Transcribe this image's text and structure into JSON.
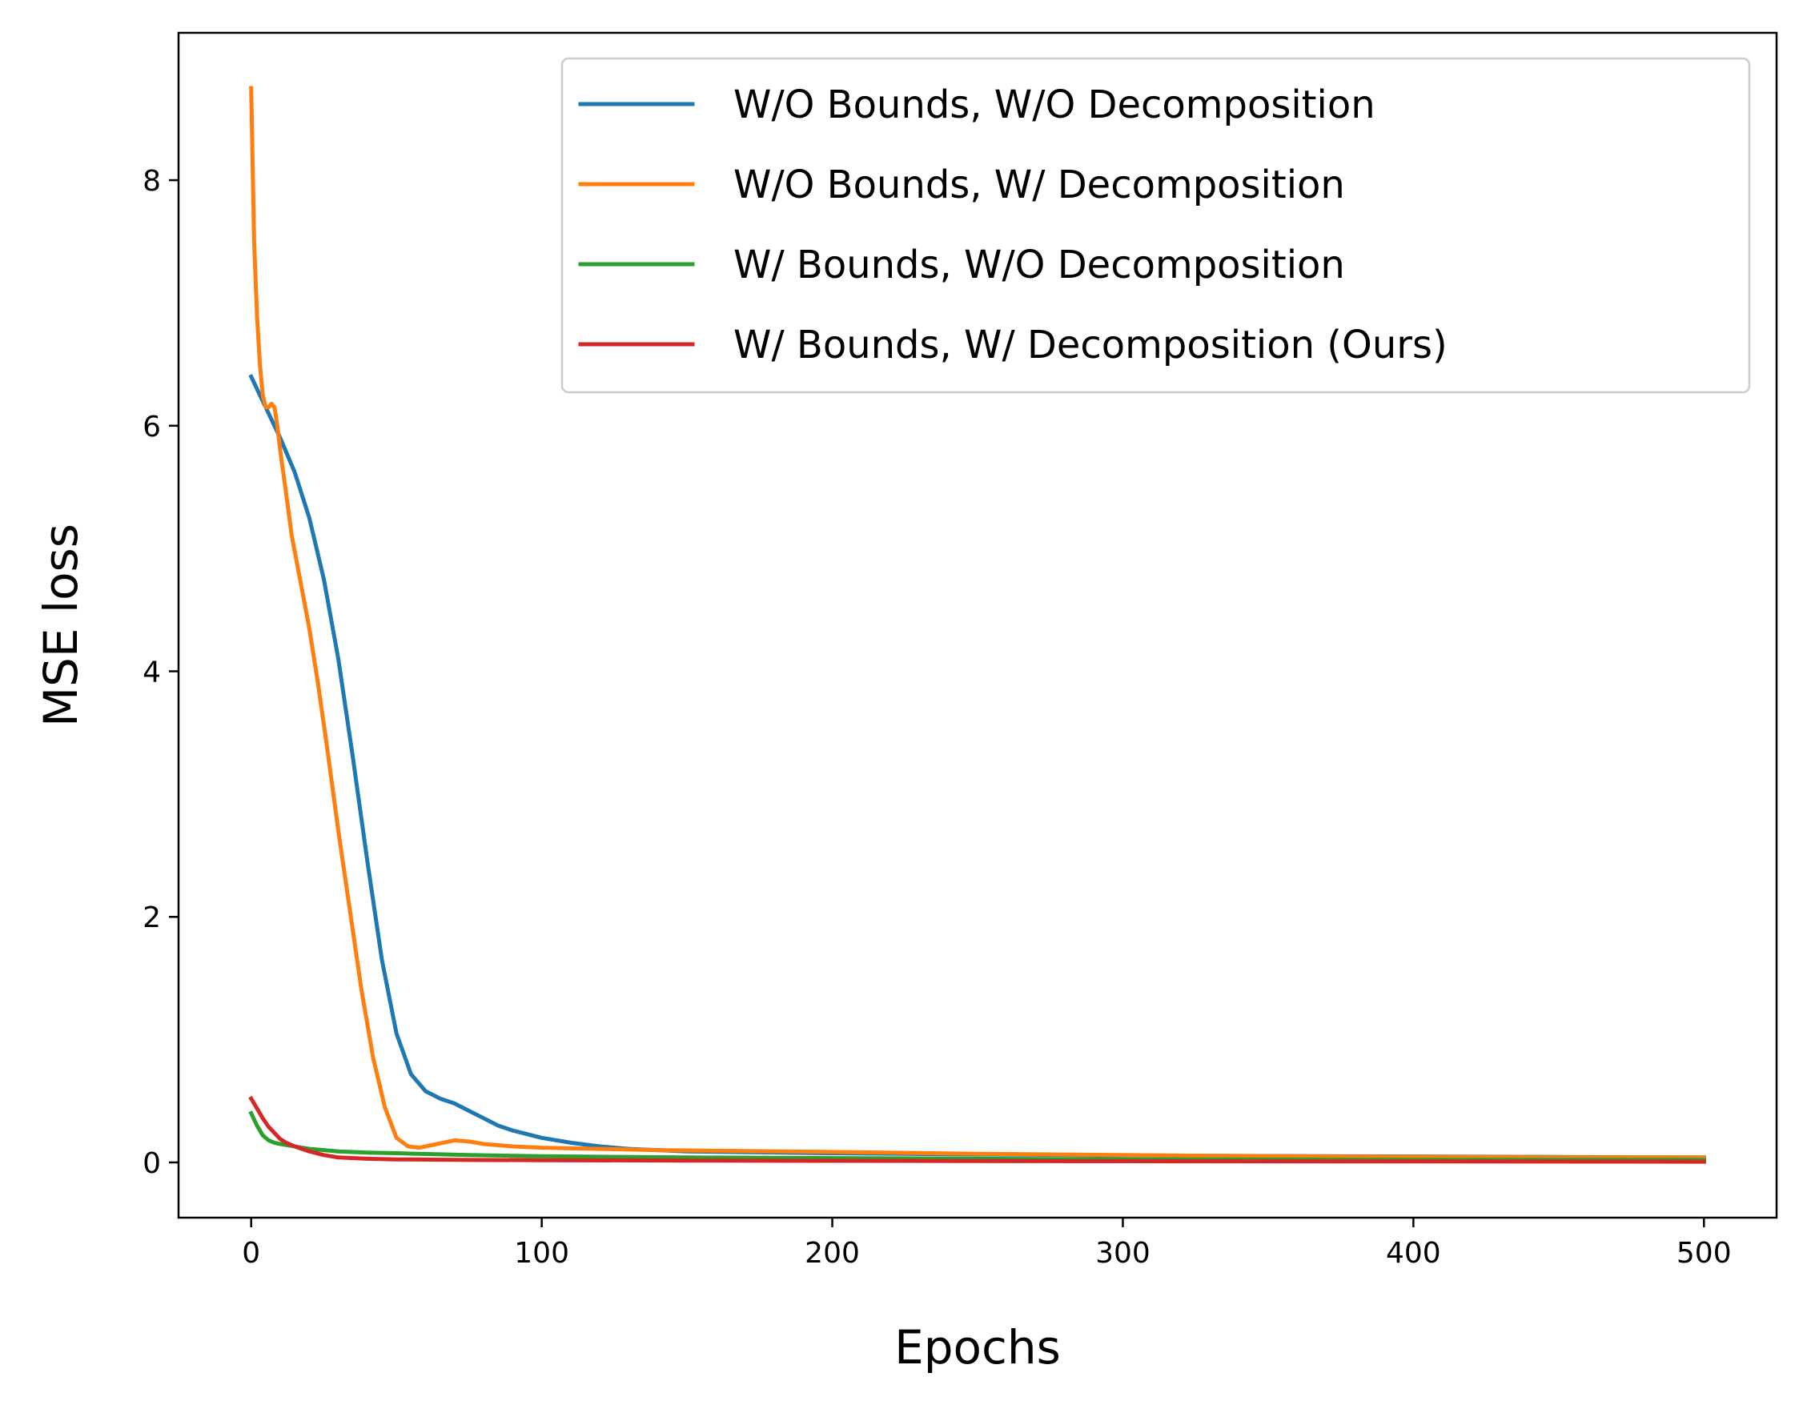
{
  "chart_data": {
    "type": "line",
    "title": "",
    "xlabel": "Epochs",
    "ylabel": "MSE loss",
    "xlim": [
      -25,
      525
    ],
    "ylim": [
      -0.45,
      9.2
    ],
    "xticks": [
      0,
      100,
      200,
      300,
      400,
      500
    ],
    "xtick_labels": [
      "0",
      "100",
      "200",
      "300",
      "400",
      "500"
    ],
    "yticks": [
      0,
      2,
      4,
      6,
      8
    ],
    "ytick_labels": [
      "0",
      "2",
      "4",
      "6",
      "8"
    ],
    "grid": false,
    "legend_position": "upper right",
    "series": [
      {
        "name": "W/O Bounds, W/O Decomposition",
        "color": "#1f77b4",
        "x": [
          0,
          5,
          10,
          15,
          20,
          25,
          30,
          35,
          40,
          45,
          50,
          55,
          60,
          65,
          70,
          75,
          80,
          85,
          90,
          95,
          100,
          110,
          120,
          130,
          140,
          150,
          200,
          250,
          300,
          350,
          400,
          450,
          500
        ],
        "y": [
          6.4,
          6.15,
          5.9,
          5.62,
          5.25,
          4.75,
          4.1,
          3.3,
          2.45,
          1.65,
          1.05,
          0.72,
          0.58,
          0.52,
          0.48,
          0.42,
          0.36,
          0.3,
          0.26,
          0.23,
          0.2,
          0.16,
          0.13,
          0.11,
          0.1,
          0.09,
          0.075,
          0.065,
          0.058,
          0.052,
          0.048,
          0.044,
          0.04
        ]
      },
      {
        "name": "W/O Bounds, W/ Decomposition",
        "color": "#ff7f0e",
        "x": [
          0,
          1,
          2,
          3,
          4,
          5,
          6,
          7,
          8,
          9,
          10,
          12,
          14,
          16,
          18,
          20,
          23,
          26,
          30,
          34,
          38,
          42,
          46,
          50,
          54,
          58,
          62,
          66,
          70,
          75,
          80,
          90,
          100,
          120,
          140,
          160,
          200,
          250,
          300,
          350,
          400,
          450,
          500
        ],
        "y": [
          8.75,
          7.5,
          6.9,
          6.5,
          6.25,
          6.15,
          6.15,
          6.18,
          6.15,
          6.0,
          5.8,
          5.45,
          5.1,
          4.85,
          4.6,
          4.35,
          3.9,
          3.4,
          2.7,
          2.05,
          1.4,
          0.85,
          0.45,
          0.2,
          0.13,
          0.12,
          0.14,
          0.16,
          0.18,
          0.17,
          0.15,
          0.13,
          0.12,
          0.11,
          0.1,
          0.095,
          0.085,
          0.07,
          0.06,
          0.05,
          0.045,
          0.04,
          0.04
        ]
      },
      {
        "name": "W/ Bounds, W/O Decomposition",
        "color": "#2ca02c",
        "x": [
          0,
          2,
          4,
          6,
          8,
          10,
          15,
          20,
          25,
          30,
          40,
          50,
          75,
          100,
          150,
          200,
          300,
          400,
          500
        ],
        "y": [
          0.4,
          0.3,
          0.22,
          0.18,
          0.16,
          0.15,
          0.13,
          0.11,
          0.1,
          0.09,
          0.08,
          0.075,
          0.06,
          0.05,
          0.04,
          0.035,
          0.025,
          0.02,
          0.02
        ]
      },
      {
        "name": "W/ Bounds, W/ Decomposition (Ours)",
        "color": "#d62728",
        "x": [
          0,
          2,
          4,
          6,
          8,
          10,
          12,
          15,
          20,
          25,
          30,
          35,
          40,
          50,
          75,
          100,
          150,
          200,
          300,
          400,
          500
        ],
        "y": [
          0.52,
          0.44,
          0.36,
          0.29,
          0.24,
          0.19,
          0.16,
          0.13,
          0.09,
          0.06,
          0.04,
          0.035,
          0.03,
          0.025,
          0.02,
          0.018,
          0.015,
          0.013,
          0.01,
          0.008,
          0.006
        ]
      }
    ]
  }
}
